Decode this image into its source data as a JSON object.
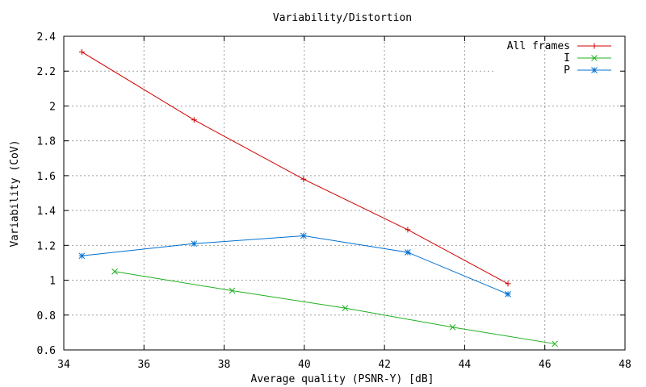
{
  "chart_data": {
    "type": "line",
    "title": "Variability/Distortion",
    "xlabel": "Average quality (PSNR-Y) [dB]",
    "ylabel": "Variability (CoV)",
    "xlim": [
      34,
      48
    ],
    "ylim": [
      0.6,
      2.4
    ],
    "xticks": [
      34,
      36,
      38,
      40,
      42,
      44,
      46,
      48
    ],
    "yticks": [
      0.6,
      0.8,
      1,
      1.2,
      1.4,
      1.6,
      1.8,
      2,
      2.2,
      2.4
    ],
    "xtick_labels": [
      "34",
      "36",
      "38",
      "40",
      "42",
      "44",
      "46",
      "48"
    ],
    "ytick_labels": [
      "0.6",
      "0.8",
      "1",
      "1.2",
      "1.4",
      "1.6",
      "1.8",
      "2",
      "2.2",
      "2.4"
    ],
    "grid": true,
    "legend_position": "top-right",
    "series": [
      {
        "name": "All frames",
        "color": "#d00000",
        "marker": "plus",
        "x": [
          34.45,
          37.25,
          39.98,
          42.58,
          45.08
        ],
        "y": [
          2.31,
          1.92,
          1.58,
          1.29,
          0.98
        ]
      },
      {
        "name": "I",
        "color": "#20b020",
        "marker": "cross",
        "x": [
          35.27,
          38.2,
          41.02,
          43.7,
          46.25
        ],
        "y": [
          1.05,
          0.94,
          0.84,
          0.73,
          0.635
        ]
      },
      {
        "name": "P",
        "color": "#0070d0",
        "marker": "star",
        "x": [
          34.45,
          37.25,
          39.98,
          42.58,
          45.08
        ],
        "y": [
          1.14,
          1.21,
          1.255,
          1.16,
          0.92
        ]
      }
    ]
  }
}
